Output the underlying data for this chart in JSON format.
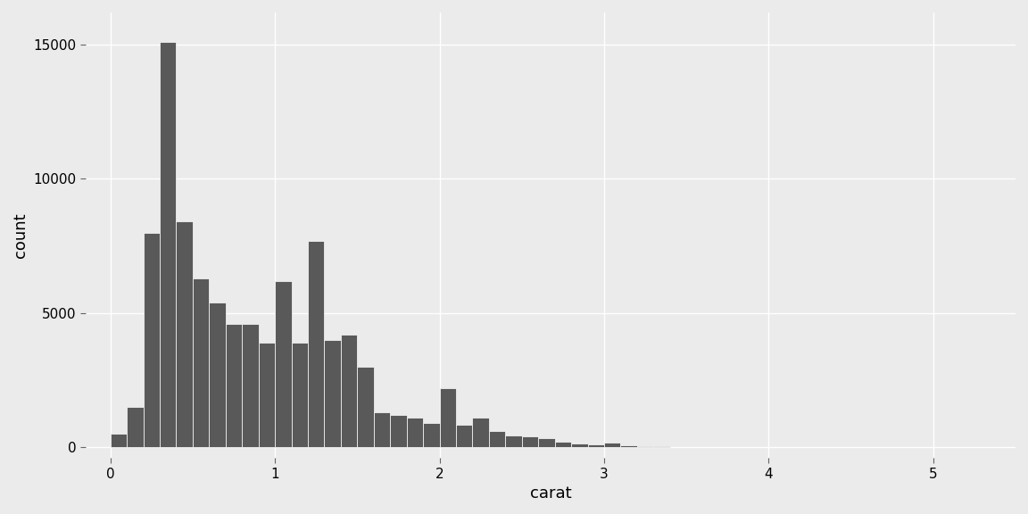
{
  "title": "",
  "xlabel": "carat",
  "ylabel": "count",
  "bar_color": "#595959",
  "bar_edgecolor": "#595959",
  "background_color": "#EBEBEB",
  "grid_color": "#FFFFFF",
  "xlim": [
    -0.15,
    5.5
  ],
  "ylim": [
    -400,
    16200
  ],
  "xticks": [
    0,
    1,
    2,
    3,
    4,
    5
  ],
  "yticks": [
    0,
    5000,
    10000,
    15000
  ],
  "bin_width": 0.1,
  "bin_edges": [
    0.0,
    0.1,
    0.2,
    0.3,
    0.4,
    0.5,
    0.6,
    0.7,
    0.8,
    0.9,
    1.0,
    1.1,
    1.2,
    1.3,
    1.4,
    1.5,
    1.6,
    1.7,
    1.8,
    1.9,
    2.0,
    2.1,
    2.2,
    2.3,
    2.4,
    2.5,
    2.6,
    2.7,
    2.8,
    2.9,
    3.0,
    3.1,
    3.2,
    3.3,
    3.4,
    3.5
  ],
  "bin_counts": [
    500,
    1500,
    8000,
    15100,
    8400,
    6300,
    5400,
    4600,
    4600,
    3900,
    6200,
    3900,
    7700,
    4000,
    4200,
    3000,
    1300,
    1200,
    1100,
    900,
    2200,
    850,
    1100,
    600,
    450,
    400,
    350,
    200,
    150,
    100,
    170,
    80,
    50,
    30,
    20,
    10
  ],
  "xlabel_fontsize": 13,
  "ylabel_fontsize": 13,
  "tick_fontsize": 11
}
